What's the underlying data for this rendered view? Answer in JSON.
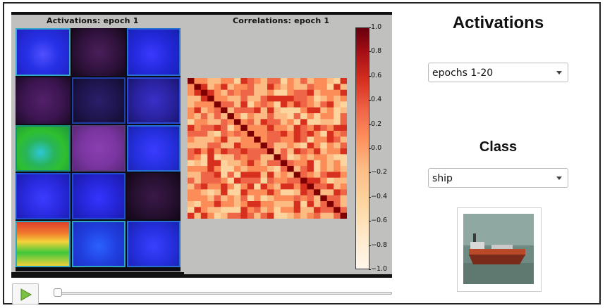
{
  "figure": {
    "activations_title": "Activations: epoch 1",
    "correlations_title": "Correlations: epoch 1",
    "colorbar_ticks": [
      "1.0",
      "0.8",
      "0.6",
      "0.4",
      "0.2",
      "0.0",
      "−0.2",
      "−0.4",
      "−0.6",
      "−0.8",
      "−1.0"
    ],
    "colorbar_colors": [
      "#67000d",
      "#fff7ec"
    ]
  },
  "controls": {
    "play_icon": "play-icon",
    "slider_value": 0
  },
  "sidebar": {
    "heading": "Activations",
    "epochs_select_value": "epochs 1-20",
    "class_heading": "Class",
    "class_select_value": "ship",
    "class_image": "ship-thumbnail"
  }
}
